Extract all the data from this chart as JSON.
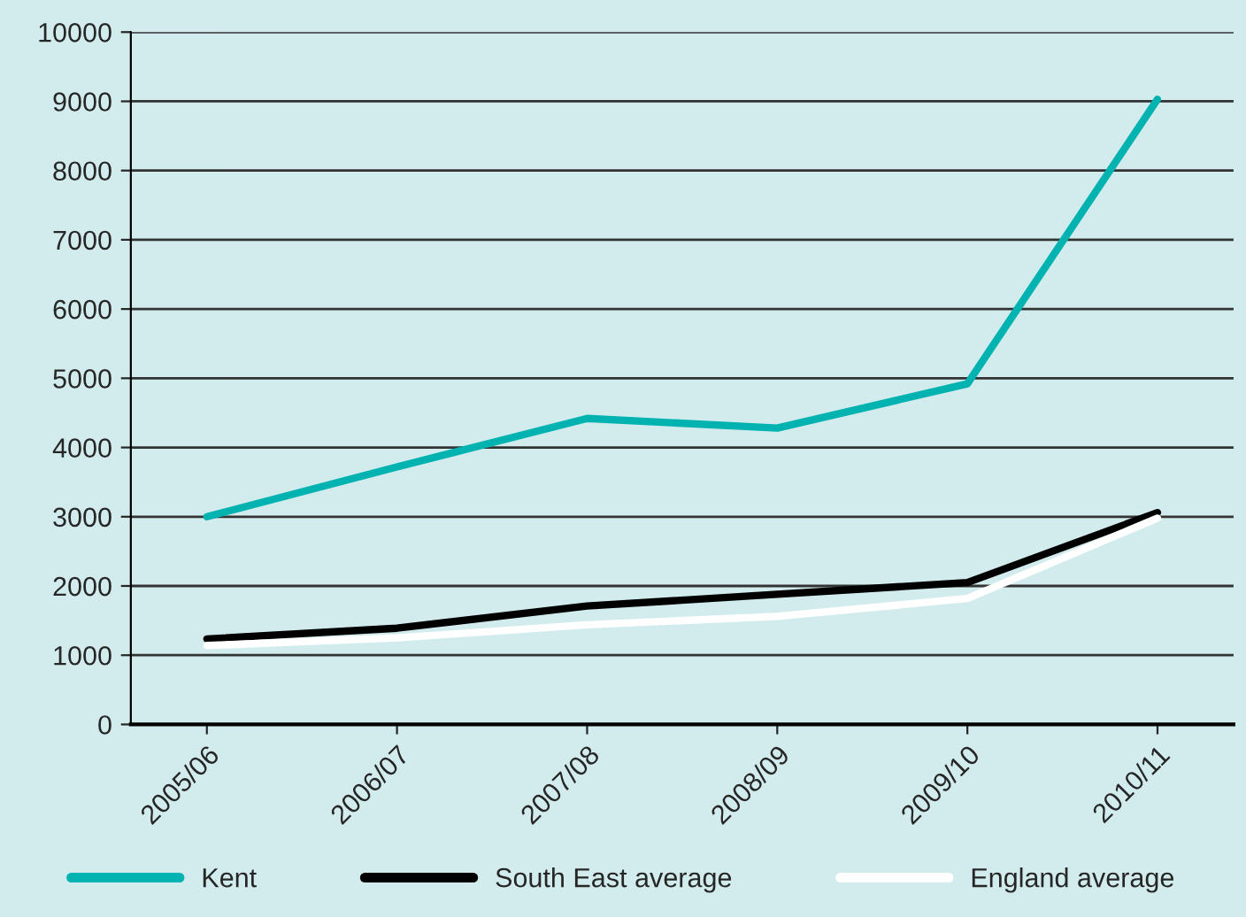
{
  "chart_data": {
    "type": "line",
    "categories": [
      "2005/06",
      "2006/07",
      "2007/08",
      "2008/09",
      "2009/10",
      "2010/11"
    ],
    "series": [
      {
        "name": "Kent",
        "color": "#00b2b0",
        "values": [
          3000,
          3720,
          4420,
          4280,
          4920,
          9030
        ]
      },
      {
        "name": "South East average",
        "color": "#000000",
        "values": [
          1235,
          1390,
          1710,
          1880,
          2050,
          3060
        ]
      },
      {
        "name": "England average",
        "color": "#ffffff",
        "values": [
          1140,
          1250,
          1440,
          1560,
          1820,
          2980
        ]
      }
    ],
    "ylim": [
      0,
      10000
    ],
    "yticks": [
      0,
      1000,
      2000,
      3000,
      4000,
      5000,
      6000,
      7000,
      8000,
      9000,
      10000
    ],
    "grid": "y",
    "legend": "bottom",
    "marker": "none",
    "line_style": "solid"
  }
}
